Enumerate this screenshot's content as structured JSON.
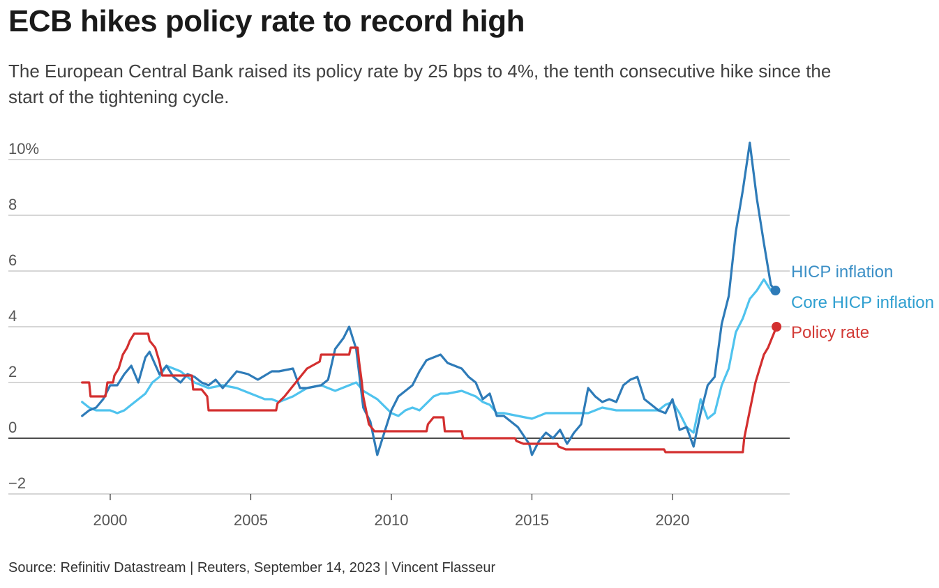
{
  "header": {
    "title": "ECB hikes policy rate to record high",
    "subtitle": "The European Central Bank raised its policy rate by 25 bps to 4%, the tenth consecutive hike since the start of the tightening cycle."
  },
  "footer": {
    "source": "Source: Refinitiv Datastream | Reuters, September 14, 2023 | Vincent Flasseur"
  },
  "chart_data": {
    "type": "line",
    "title": "ECB hikes policy rate to record high",
    "xlabel": "",
    "ylabel": "",
    "xlim": [
      1996.3,
      2024.8
    ],
    "ylim": [
      -2,
      10
    ],
    "x_ticks": [
      2000,
      2005,
      2010,
      2015,
      2020
    ],
    "x_tick_labels": [
      "2000",
      "2005",
      "2010",
      "2015",
      "2020"
    ],
    "y_ticks": [
      -2,
      0,
      2,
      4,
      6,
      8,
      10
    ],
    "y_tick_labels": [
      "−2",
      "0",
      "2",
      "4",
      "6",
      "8",
      "10%"
    ],
    "grid": true,
    "legend": "direct labels at right end of lines",
    "series": [
      {
        "name": "HICP inflation",
        "color": "#2e7bb8",
        "end_marker": true,
        "points": [
          [
            1999.0,
            0.8
          ],
          [
            1999.25,
            1.0
          ],
          [
            1999.5,
            1.1
          ],
          [
            1999.75,
            1.4
          ],
          [
            2000.0,
            1.9
          ],
          [
            2000.25,
            1.9
          ],
          [
            2000.5,
            2.3
          ],
          [
            2000.75,
            2.6
          ],
          [
            2001.0,
            2.0
          ],
          [
            2001.25,
            2.9
          ],
          [
            2001.4,
            3.1
          ],
          [
            2001.75,
            2.3
          ],
          [
            2002.0,
            2.6
          ],
          [
            2002.25,
            2.2
          ],
          [
            2002.5,
            2.0
          ],
          [
            2002.75,
            2.3
          ],
          [
            2003.0,
            2.2
          ],
          [
            2003.25,
            2.0
          ],
          [
            2003.5,
            1.9
          ],
          [
            2003.75,
            2.1
          ],
          [
            2004.0,
            1.8
          ],
          [
            2004.5,
            2.4
          ],
          [
            2004.9,
            2.3
          ],
          [
            2005.25,
            2.1
          ],
          [
            2005.75,
            2.4
          ],
          [
            2006.0,
            2.4
          ],
          [
            2006.5,
            2.5
          ],
          [
            2006.75,
            1.8
          ],
          [
            2007.0,
            1.8
          ],
          [
            2007.5,
            1.9
          ],
          [
            2007.75,
            2.1
          ],
          [
            2008.0,
            3.2
          ],
          [
            2008.3,
            3.6
          ],
          [
            2008.5,
            4.0
          ],
          [
            2008.75,
            3.2
          ],
          [
            2009.0,
            1.1
          ],
          [
            2009.25,
            0.6
          ],
          [
            2009.5,
            -0.6
          ],
          [
            2009.75,
            0.2
          ],
          [
            2010.0,
            1.0
          ],
          [
            2010.25,
            1.5
          ],
          [
            2010.75,
            1.9
          ],
          [
            2011.0,
            2.4
          ],
          [
            2011.25,
            2.8
          ],
          [
            2011.75,
            3.0
          ],
          [
            2012.0,
            2.7
          ],
          [
            2012.25,
            2.6
          ],
          [
            2012.5,
            2.5
          ],
          [
            2012.75,
            2.2
          ],
          [
            2013.0,
            2.0
          ],
          [
            2013.25,
            1.4
          ],
          [
            2013.5,
            1.6
          ],
          [
            2013.75,
            0.8
          ],
          [
            2014.0,
            0.8
          ],
          [
            2014.5,
            0.4
          ],
          [
            2014.9,
            -0.2
          ],
          [
            2015.0,
            -0.6
          ],
          [
            2015.25,
            -0.1
          ],
          [
            2015.5,
            0.2
          ],
          [
            2015.75,
            0.0
          ],
          [
            2016.0,
            0.3
          ],
          [
            2016.25,
            -0.2
          ],
          [
            2016.5,
            0.2
          ],
          [
            2016.75,
            0.5
          ],
          [
            2017.0,
            1.8
          ],
          [
            2017.25,
            1.5
          ],
          [
            2017.5,
            1.3
          ],
          [
            2017.75,
            1.4
          ],
          [
            2018.0,
            1.3
          ],
          [
            2018.25,
            1.9
          ],
          [
            2018.5,
            2.1
          ],
          [
            2018.75,
            2.2
          ],
          [
            2019.0,
            1.4
          ],
          [
            2019.25,
            1.2
          ],
          [
            2019.5,
            1.0
          ],
          [
            2019.75,
            0.9
          ],
          [
            2020.0,
            1.4
          ],
          [
            2020.25,
            0.3
          ],
          [
            2020.5,
            0.4
          ],
          [
            2020.75,
            -0.3
          ],
          [
            2021.0,
            0.9
          ],
          [
            2021.25,
            1.9
          ],
          [
            2021.5,
            2.2
          ],
          [
            2021.75,
            4.1
          ],
          [
            2022.0,
            5.1
          ],
          [
            2022.25,
            7.4
          ],
          [
            2022.5,
            8.9
          ],
          [
            2022.75,
            10.6
          ],
          [
            2023.0,
            8.6
          ],
          [
            2023.25,
            7.0
          ],
          [
            2023.5,
            5.5
          ],
          [
            2023.66,
            5.3
          ]
        ]
      },
      {
        "name": "Core HICP inflation",
        "color": "#4fc3ee",
        "end_marker": false,
        "points": [
          [
            1999.0,
            1.3
          ],
          [
            1999.25,
            1.1
          ],
          [
            1999.5,
            1.0
          ],
          [
            1999.75,
            1.0
          ],
          [
            2000.0,
            1.0
          ],
          [
            2000.25,
            0.9
          ],
          [
            2000.5,
            1.0
          ],
          [
            2000.75,
            1.2
          ],
          [
            2001.0,
            1.4
          ],
          [
            2001.25,
            1.6
          ],
          [
            2001.5,
            2.0
          ],
          [
            2001.75,
            2.2
          ],
          [
            2002.0,
            2.6
          ],
          [
            2002.25,
            2.5
          ],
          [
            2002.5,
            2.4
          ],
          [
            2002.75,
            2.2
          ],
          [
            2003.0,
            2.0
          ],
          [
            2003.5,
            1.8
          ],
          [
            2004.0,
            1.9
          ],
          [
            2004.5,
            1.8
          ],
          [
            2005.0,
            1.6
          ],
          [
            2005.25,
            1.5
          ],
          [
            2005.5,
            1.4
          ],
          [
            2005.75,
            1.4
          ],
          [
            2006.0,
            1.3
          ],
          [
            2006.5,
            1.5
          ],
          [
            2007.0,
            1.8
          ],
          [
            2007.5,
            1.9
          ],
          [
            2008.0,
            1.7
          ],
          [
            2008.5,
            1.9
          ],
          [
            2008.75,
            2.0
          ],
          [
            2009.0,
            1.7
          ],
          [
            2009.5,
            1.4
          ],
          [
            2010.0,
            0.9
          ],
          [
            2010.25,
            0.8
          ],
          [
            2010.5,
            1.0
          ],
          [
            2010.75,
            1.1
          ],
          [
            2011.0,
            1.0
          ],
          [
            2011.5,
            1.5
          ],
          [
            2011.75,
            1.6
          ],
          [
            2012.0,
            1.6
          ],
          [
            2012.5,
            1.7
          ],
          [
            2013.0,
            1.5
          ],
          [
            2013.25,
            1.3
          ],
          [
            2013.5,
            1.2
          ],
          [
            2013.75,
            0.9
          ],
          [
            2014.0,
            0.9
          ],
          [
            2014.5,
            0.8
          ],
          [
            2015.0,
            0.7
          ],
          [
            2015.5,
            0.9
          ],
          [
            2016.0,
            0.9
          ],
          [
            2016.5,
            0.9
          ],
          [
            2017.0,
            0.9
          ],
          [
            2017.5,
            1.1
          ],
          [
            2018.0,
            1.0
          ],
          [
            2018.5,
            1.0
          ],
          [
            2019.0,
            1.0
          ],
          [
            2019.5,
            1.0
          ],
          [
            2019.75,
            1.2
          ],
          [
            2020.0,
            1.3
          ],
          [
            2020.25,
            0.9
          ],
          [
            2020.5,
            0.4
          ],
          [
            2020.75,
            0.2
          ],
          [
            2021.0,
            1.4
          ],
          [
            2021.25,
            0.7
          ],
          [
            2021.5,
            0.9
          ],
          [
            2021.75,
            1.9
          ],
          [
            2022.0,
            2.5
          ],
          [
            2022.25,
            3.8
          ],
          [
            2022.5,
            4.3
          ],
          [
            2022.75,
            5.0
          ],
          [
            2023.0,
            5.3
          ],
          [
            2023.25,
            5.7
          ],
          [
            2023.5,
            5.3
          ],
          [
            2023.66,
            5.3
          ]
        ]
      },
      {
        "name": "Policy rate",
        "color": "#d32f2f",
        "end_marker": true,
        "points": [
          [
            1999.0,
            2.0
          ],
          [
            1999.25,
            2.0
          ],
          [
            1999.3,
            1.5
          ],
          [
            1999.83,
            1.5
          ],
          [
            1999.9,
            2.0
          ],
          [
            2000.1,
            2.0
          ],
          [
            2000.15,
            2.25
          ],
          [
            2000.3,
            2.5
          ],
          [
            2000.45,
            3.0
          ],
          [
            2000.6,
            3.25
          ],
          [
            2000.7,
            3.5
          ],
          [
            2000.85,
            3.75
          ],
          [
            2001.35,
            3.75
          ],
          [
            2001.4,
            3.5
          ],
          [
            2001.6,
            3.25
          ],
          [
            2001.75,
            2.75
          ],
          [
            2001.85,
            2.25
          ],
          [
            2002.9,
            2.25
          ],
          [
            2002.95,
            1.75
          ],
          [
            2003.25,
            1.75
          ],
          [
            2003.45,
            1.5
          ],
          [
            2003.5,
            1.0
          ],
          [
            2005.9,
            1.0
          ],
          [
            2005.95,
            1.25
          ],
          [
            2006.2,
            1.5
          ],
          [
            2006.4,
            1.75
          ],
          [
            2006.6,
            2.0
          ],
          [
            2006.8,
            2.25
          ],
          [
            2007.0,
            2.5
          ],
          [
            2007.45,
            2.75
          ],
          [
            2007.5,
            3.0
          ],
          [
            2008.5,
            3.0
          ],
          [
            2008.55,
            3.25
          ],
          [
            2008.8,
            3.25
          ],
          [
            2008.85,
            2.75
          ],
          [
            2008.95,
            2.0
          ],
          [
            2009.0,
            1.5
          ],
          [
            2009.2,
            0.5
          ],
          [
            2009.4,
            0.25
          ],
          [
            2011.25,
            0.25
          ],
          [
            2011.3,
            0.5
          ],
          [
            2011.5,
            0.75
          ],
          [
            2011.85,
            0.75
          ],
          [
            2011.9,
            0.25
          ],
          [
            2012.5,
            0.25
          ],
          [
            2012.55,
            0.0
          ],
          [
            2014.4,
            0.0
          ],
          [
            2014.45,
            -0.1
          ],
          [
            2014.7,
            -0.2
          ],
          [
            2015.9,
            -0.2
          ],
          [
            2015.95,
            -0.3
          ],
          [
            2016.2,
            -0.4
          ],
          [
            2019.7,
            -0.4
          ],
          [
            2019.75,
            -0.5
          ],
          [
            2022.5,
            -0.5
          ],
          [
            2022.55,
            0.0
          ],
          [
            2022.7,
            0.75
          ],
          [
            2022.85,
            1.5
          ],
          [
            2022.95,
            2.0
          ],
          [
            2023.1,
            2.5
          ],
          [
            2023.25,
            3.0
          ],
          [
            2023.4,
            3.25
          ],
          [
            2023.5,
            3.5
          ],
          [
            2023.6,
            3.75
          ],
          [
            2023.7,
            4.0
          ]
        ]
      }
    ],
    "end_labels": [
      {
        "series": "HICP inflation",
        "color": "#3b8fc6"
      },
      {
        "series": "Core HICP inflation",
        "color": "#2f9fd0"
      },
      {
        "series": "Policy rate",
        "color": "#d23a36"
      }
    ]
  }
}
